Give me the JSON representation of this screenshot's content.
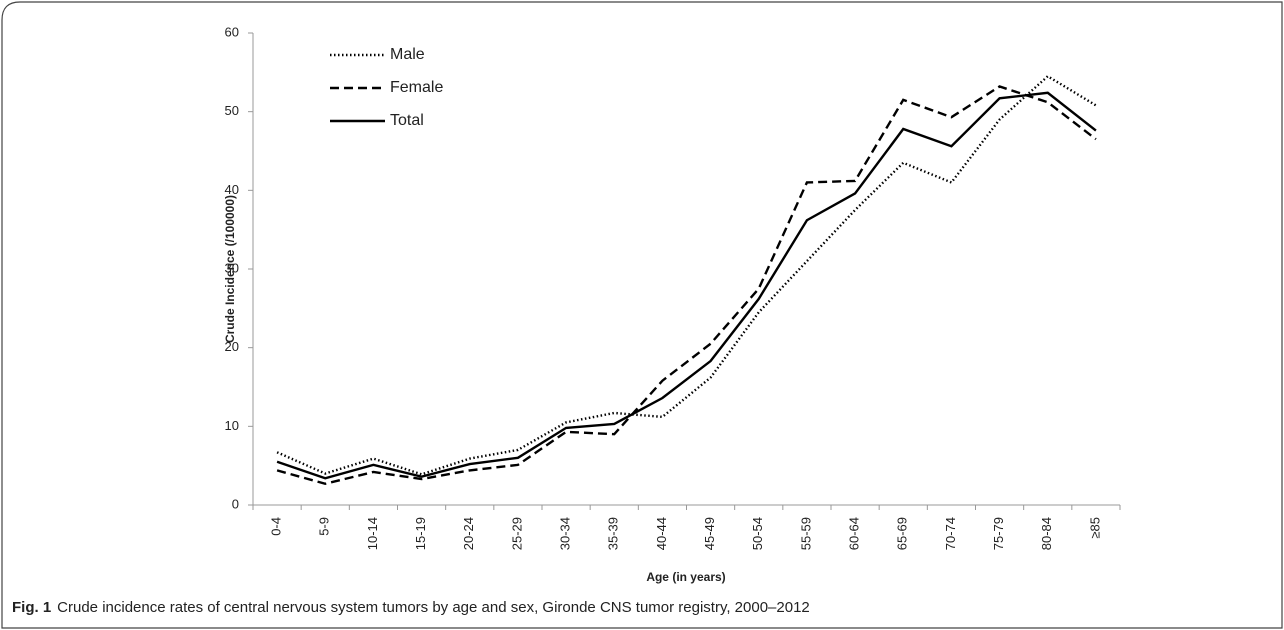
{
  "chart_data": {
    "type": "line",
    "x_label": "Age (in years)",
    "y_label": "Crude Incidence (/100000)",
    "categories": [
      "0-4",
      "5-9",
      "10-14",
      "15-19",
      "20-24",
      "25-29",
      "30-34",
      "35-39",
      "40-44",
      "45-49",
      "50-54",
      "55-59",
      "60-64",
      "65-69",
      "70-74",
      "75-79",
      "80-84",
      "≥85"
    ],
    "series": [
      {
        "name": "Male",
        "color": "#000000",
        "line_style": "dotted",
        "values": [
          6.7,
          4.0,
          5.9,
          3.9,
          5.9,
          7.0,
          10.5,
          11.7,
          11.2,
          16.2,
          24.5,
          31.0,
          37.5,
          43.5,
          41.0,
          49.0,
          54.5,
          50.8
        ]
      },
      {
        "name": "Female",
        "color": "#000000",
        "line_style": "dashed",
        "values": [
          4.4,
          2.7,
          4.2,
          3.3,
          4.4,
          5.1,
          9.3,
          9.0,
          15.8,
          20.5,
          27.5,
          41.0,
          41.2,
          51.5,
          49.3,
          53.2,
          51.2,
          46.5
        ]
      },
      {
        "name": "Total",
        "color": "#000000",
        "line_style": "solid",
        "values": [
          5.5,
          3.4,
          5.1,
          3.6,
          5.2,
          6.0,
          9.8,
          10.3,
          13.6,
          18.3,
          26.2,
          36.2,
          39.6,
          47.8,
          45.6,
          51.7,
          52.4,
          47.6
        ]
      }
    ],
    "ylim": [
      0,
      60
    ],
    "yticks": [
      0,
      10,
      20,
      30,
      40,
      50,
      60
    ],
    "grid": false,
    "legend": "top-left"
  },
  "caption": {
    "label": "Fig. 1",
    "text": "Crude incidence rates of central nervous system tumors by age and sex, Gironde CNS tumor registry, 2000–2012"
  }
}
